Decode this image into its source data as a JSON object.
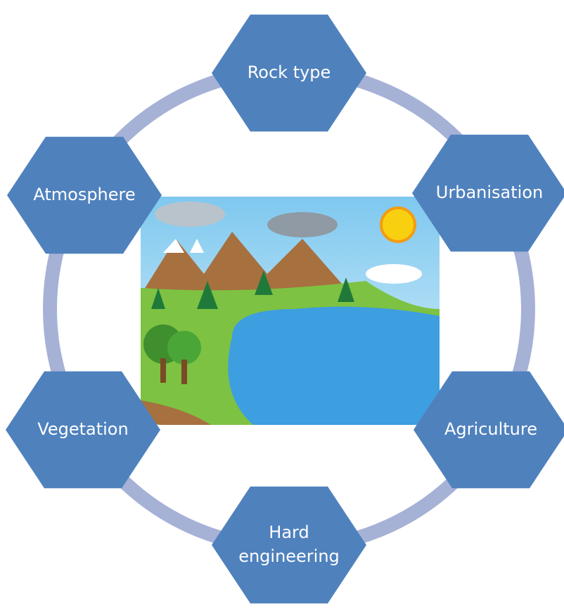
{
  "nodes": [
    {
      "label": [
        "Rock type"
      ]
    },
    {
      "label": [
        "Urbanisation"
      ]
    },
    {
      "label": [
        "Agriculture"
      ]
    },
    {
      "label": [
        "Hard",
        "engineering"
      ]
    },
    {
      "label": [
        "Vegetation"
      ]
    },
    {
      "label": [
        "Atmosphere"
      ]
    }
  ]
}
